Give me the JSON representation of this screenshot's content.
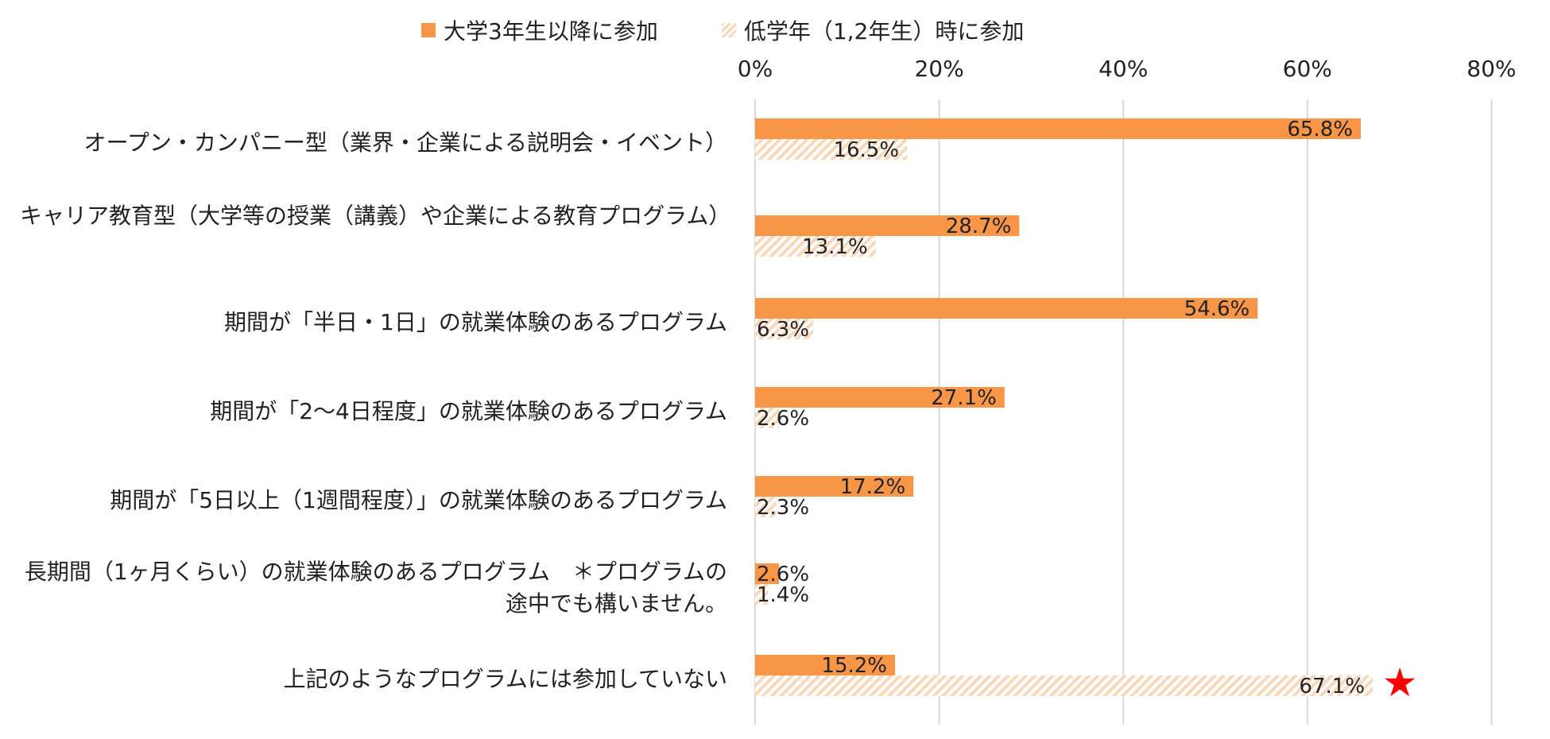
{
  "chart_data": {
    "type": "bar",
    "orientation": "horizontal",
    "categories": [
      "オープン・カンパニー型（業界・企業による説明会・イベント）",
      "キャリア教育型（大学等の授業（講義）や企業による教育プログラム）",
      "期間が「半日・1日」の就業体験のあるプログラム",
      "期間が「2〜4日程度」の就業体験のあるプログラム",
      "期間が「5日以上（1週間程度）」の就業体験のあるプログラム",
      "長期間（1ヶ月くらい）の就業体験のあるプログラム　＊プログラムの途中でも構いません。",
      "上記のようなプログラムには参加していない"
    ],
    "series": [
      {
        "name": "大学3年生以降に参加",
        "values": [
          65.8,
          28.7,
          54.6,
          27.1,
          17.2,
          2.6,
          15.2
        ],
        "color": "#f79646",
        "style": "solid"
      },
      {
        "name": "低学年（1,2年生）時に参加",
        "values": [
          16.5,
          13.1,
          6.3,
          2.6,
          2.3,
          1.4,
          67.1
        ],
        "color": "#fad7b8",
        "style": "hatched"
      }
    ],
    "x_ticks": [
      "0%",
      "20%",
      "40%",
      "60%",
      "80%"
    ],
    "xlim": [
      0,
      80
    ],
    "value_format": "%",
    "grid": true,
    "legend_position": "top",
    "annotation": {
      "category_index": 6,
      "series_index": 1,
      "symbol": "★",
      "color": "#ff0000"
    }
  }
}
